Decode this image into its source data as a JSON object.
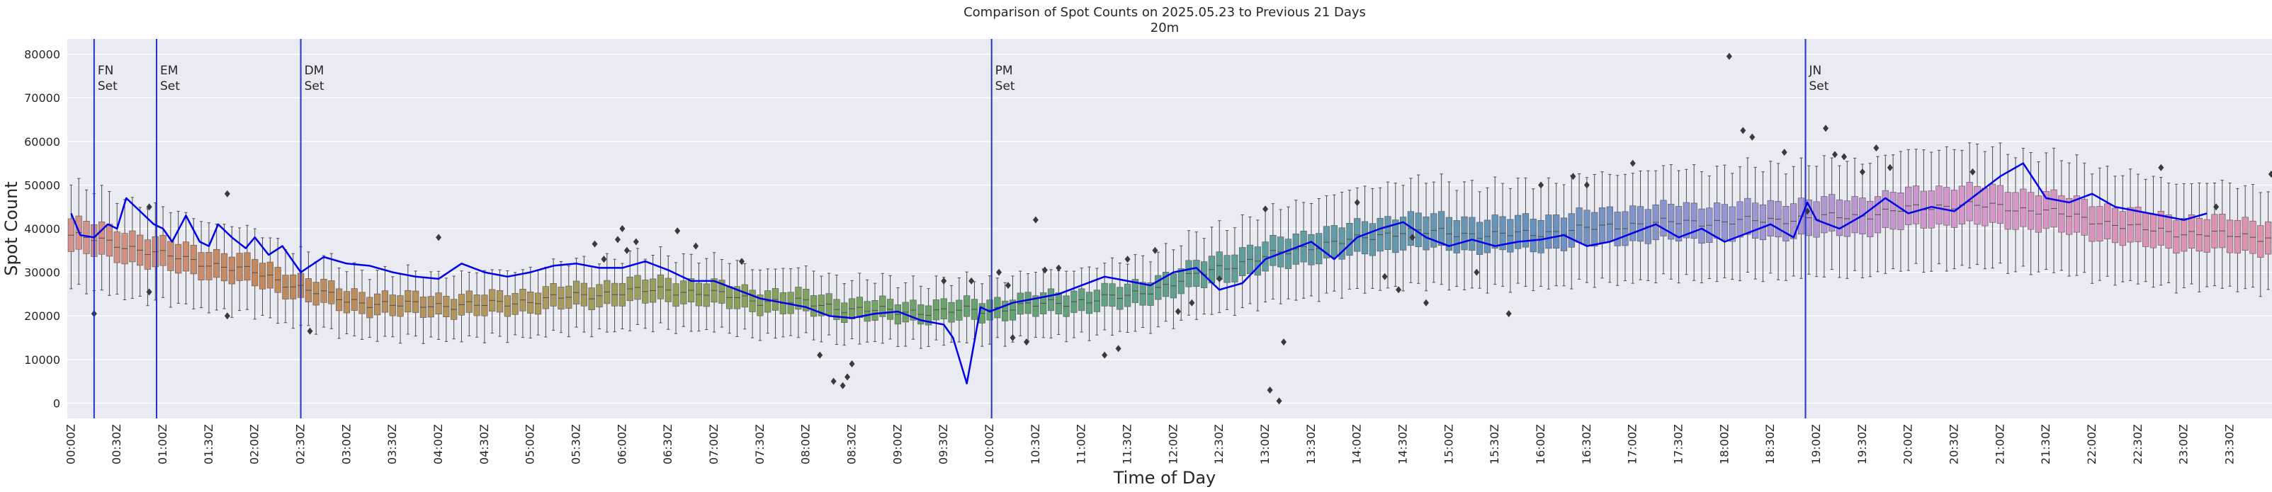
{
  "chart_data": {
    "type": "box",
    "title": "Comparison of Spot Counts on 2025.05.23 to Previous 21 Days",
    "subtitle": "20m",
    "xlabel": "Time of Day",
    "ylabel": "Spot Count",
    "ylim": [
      -3500,
      83500
    ],
    "yticks": [
      0,
      10000,
      20000,
      30000,
      40000,
      50000,
      60000,
      70000,
      80000
    ],
    "ytick_labels": [
      "0",
      "10000",
      "20000",
      "30000",
      "40000",
      "50000",
      "60000",
      "70000",
      "80000"
    ],
    "xtick_labels": [
      "00:00Z",
      "00:30Z",
      "01:00Z",
      "01:30Z",
      "02:00Z",
      "02:30Z",
      "03:00Z",
      "03:30Z",
      "04:00Z",
      "04:30Z",
      "05:00Z",
      "05:30Z",
      "06:00Z",
      "06:30Z",
      "07:00Z",
      "07:30Z",
      "08:00Z",
      "08:30Z",
      "09:00Z",
      "09:30Z",
      "10:00Z",
      "10:30Z",
      "11:00Z",
      "11:30Z",
      "12:00Z",
      "12:30Z",
      "13:00Z",
      "13:30Z",
      "14:00Z",
      "14:30Z",
      "15:00Z",
      "15:30Z",
      "16:00Z",
      "16:30Z",
      "17:00Z",
      "17:30Z",
      "18:00Z",
      "18:30Z",
      "19:00Z",
      "19:30Z",
      "20:00Z",
      "20:30Z",
      "21:00Z",
      "21:30Z",
      "22:00Z",
      "22:30Z",
      "23:00Z",
      "23:30Z"
    ],
    "slots_per_day": 288,
    "slot_minutes": 5,
    "grid": true,
    "median_profile": {
      "hours": [
        0,
        0.5,
        1,
        1.5,
        2,
        2.5,
        3,
        3.5,
        4,
        4.5,
        5,
        5.5,
        6,
        6.5,
        7,
        7.5,
        8,
        8.5,
        9,
        9.5,
        10,
        10.5,
        11,
        11.5,
        12,
        12.5,
        13,
        13.5,
        14,
        14.5,
        15,
        15.5,
        16,
        16.5,
        17,
        17.5,
        18,
        18.5,
        19,
        19.5,
        20,
        20.5,
        21,
        21.5,
        22,
        22.5,
        23,
        23.5,
        24
      ],
      "values": [
        38500,
        36500,
        34000,
        32000,
        30000,
        26500,
        23500,
        22500,
        22500,
        22500,
        23500,
        24500,
        25500,
        26000,
        25000,
        23500,
        23000,
        21500,
        21000,
        21000,
        21500,
        22500,
        23500,
        24500,
        27500,
        31000,
        33500,
        36000,
        37500,
        39500,
        39000,
        38500,
        39000,
        40000,
        41000,
        41500,
        41500,
        42000,
        42500,
        43000,
        44500,
        45500,
        45000,
        44000,
        42000,
        40000,
        39000,
        38500,
        38000
      ]
    },
    "series": [
      {
        "name": "2025.05.23",
        "color": "#0000ee",
        "hours": [
          0,
          0.1,
          0.25,
          0.4,
          0.5,
          0.6,
          0.75,
          0.9,
          1.0,
          1.1,
          1.25,
          1.4,
          1.5,
          1.6,
          1.75,
          1.9,
          2.0,
          2.15,
          2.3,
          2.5,
          2.75,
          3.0,
          3.25,
          3.5,
          3.75,
          4.0,
          4.25,
          4.5,
          4.75,
          5.0,
          5.25,
          5.5,
          5.75,
          6.0,
          6.25,
          6.5,
          6.75,
          7.0,
          7.25,
          7.5,
          7.75,
          8.0,
          8.25,
          8.5,
          8.75,
          9.0,
          9.25,
          9.5,
          9.6,
          9.75,
          9.9,
          10.0,
          10.25,
          10.5,
          10.75,
          11.0,
          11.25,
          11.5,
          11.75,
          12.0,
          12.25,
          12.5,
          12.75,
          13.0,
          13.25,
          13.5,
          13.75,
          14.0,
          14.25,
          14.5,
          14.75,
          15.0,
          15.25,
          15.5,
          15.75,
          16.0,
          16.25,
          16.5,
          16.75,
          17.0,
          17.25,
          17.5,
          17.75,
          18.0,
          18.25,
          18.5,
          18.75,
          18.9,
          19.0,
          19.25,
          19.5,
          19.75,
          20.0,
          20.25,
          20.5,
          20.75,
          21.0,
          21.25,
          21.5,
          21.75,
          22.0,
          22.25,
          22.5,
          22.75,
          23.0,
          23.25
        ],
        "values": [
          43500,
          38500,
          38000,
          41000,
          40000,
          47000,
          44000,
          41000,
          40000,
          37000,
          43000,
          37000,
          36000,
          41000,
          38000,
          35500,
          38000,
          34000,
          36000,
          30000,
          33500,
          32000,
          31500,
          30000,
          29000,
          28500,
          32000,
          30000,
          29000,
          30000,
          31500,
          32000,
          31000,
          31000,
          32500,
          30500,
          28000,
          28000,
          26000,
          24000,
          23000,
          22000,
          20000,
          19500,
          20500,
          21000,
          19000,
          18000,
          15000,
          4500,
          22000,
          21000,
          23000,
          24000,
          25000,
          27000,
          29000,
          28000,
          27000,
          30000,
          31000,
          26000,
          27500,
          33000,
          35000,
          37000,
          33000,
          38000,
          40000,
          41500,
          38000,
          36000,
          37500,
          36000,
          37000,
          37500,
          38500,
          36000,
          37000,
          39000,
          41000,
          38000,
          40000,
          37000,
          39000,
          41000,
          38000,
          46000,
          42000,
          40000,
          43000,
          47000,
          43500,
          45000,
          44000,
          48000,
          52000,
          55000,
          47000,
          46000,
          48000,
          45000,
          44000,
          43000,
          42000,
          43500
        ]
      }
    ],
    "events": [
      {
        "label_line1": "FN",
        "label_line2": "Set",
        "hour": 0.25
      },
      {
        "label_line1": "EM",
        "label_line2": "Set",
        "hour": 0.93
      },
      {
        "label_line1": "DM",
        "label_line2": "Set",
        "hour": 2.5
      },
      {
        "label_line1": "PM",
        "label_line2": "Set",
        "hour": 10.02
      },
      {
        "label_line1": "JN",
        "label_line2": "Set",
        "hour": 18.88
      }
    ],
    "outliers": [
      {
        "hour": 0.25,
        "value": 20500
      },
      {
        "hour": 0.85,
        "value": 25500
      },
      {
        "hour": 0.85,
        "value": 45000
      },
      {
        "hour": 1.7,
        "value": 48000
      },
      {
        "hour": 1.7,
        "value": 20000
      },
      {
        "hour": 2.6,
        "value": 16500
      },
      {
        "hour": 4.0,
        "value": 38000
      },
      {
        "hour": 5.7,
        "value": 36500
      },
      {
        "hour": 5.8,
        "value": 33000
      },
      {
        "hour": 5.95,
        "value": 37500
      },
      {
        "hour": 6.0,
        "value": 40000
      },
      {
        "hour": 6.05,
        "value": 35000
      },
      {
        "hour": 6.15,
        "value": 37000
      },
      {
        "hour": 6.6,
        "value": 39500
      },
      {
        "hour": 6.8,
        "value": 36000
      },
      {
        "hour": 7.3,
        "value": 32500
      },
      {
        "hour": 8.15,
        "value": 11000
      },
      {
        "hour": 8.3,
        "value": 5000
      },
      {
        "hour": 8.4,
        "value": 4000
      },
      {
        "hour": 8.45,
        "value": 6000
      },
      {
        "hour": 8.5,
        "value": 9000
      },
      {
        "hour": 9.5,
        "value": 28000
      },
      {
        "hour": 9.8,
        "value": 28000
      },
      {
        "hour": 10.1,
        "value": 30000
      },
      {
        "hour": 10.2,
        "value": 27000
      },
      {
        "hour": 10.25,
        "value": 15000
      },
      {
        "hour": 10.4,
        "value": 14000
      },
      {
        "hour": 10.5,
        "value": 42000
      },
      {
        "hour": 10.6,
        "value": 30500
      },
      {
        "hour": 10.75,
        "value": 31000
      },
      {
        "hour": 11.25,
        "value": 11000
      },
      {
        "hour": 11.4,
        "value": 12500
      },
      {
        "hour": 11.5,
        "value": 33000
      },
      {
        "hour": 11.8,
        "value": 35000
      },
      {
        "hour": 12.05,
        "value": 21000
      },
      {
        "hour": 12.2,
        "value": 23000
      },
      {
        "hour": 12.5,
        "value": 28500
      },
      {
        "hour": 13.0,
        "value": 44500
      },
      {
        "hour": 13.05,
        "value": 3000
      },
      {
        "hour": 13.15,
        "value": 500
      },
      {
        "hour": 13.2,
        "value": 14000
      },
      {
        "hour": 14.0,
        "value": 46000
      },
      {
        "hour": 14.3,
        "value": 29000
      },
      {
        "hour": 14.45,
        "value": 26000
      },
      {
        "hour": 14.6,
        "value": 38000
      },
      {
        "hour": 14.75,
        "value": 23000
      },
      {
        "hour": 15.3,
        "value": 30000
      },
      {
        "hour": 15.65,
        "value": 20500
      },
      {
        "hour": 16.0,
        "value": 50000
      },
      {
        "hour": 16.35,
        "value": 52000
      },
      {
        "hour": 16.5,
        "value": 50000
      },
      {
        "hour": 17.0,
        "value": 55000
      },
      {
        "hour": 18.05,
        "value": 79500
      },
      {
        "hour": 18.2,
        "value": 62500
      },
      {
        "hour": 18.3,
        "value": 61000
      },
      {
        "hour": 18.65,
        "value": 57500
      },
      {
        "hour": 18.9,
        "value": 44000
      },
      {
        "hour": 19.1,
        "value": 63000
      },
      {
        "hour": 19.2,
        "value": 57000
      },
      {
        "hour": 19.3,
        "value": 56500
      },
      {
        "hour": 19.5,
        "value": 53000
      },
      {
        "hour": 19.65,
        "value": 58500
      },
      {
        "hour": 19.8,
        "value": 54000
      },
      {
        "hour": 20.7,
        "value": 53000
      },
      {
        "hour": 22.75,
        "value": 54000
      },
      {
        "hour": 23.35,
        "value": 45000
      },
      {
        "hour": 23.95,
        "value": 52500
      }
    ]
  }
}
